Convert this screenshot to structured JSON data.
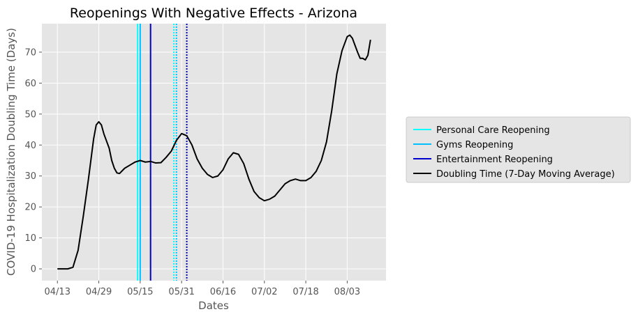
{
  "chart_data": {
    "type": "line",
    "title": "Reopenings With Negative Effects - Arizona",
    "xlabel": "Dates",
    "ylabel": "COVID-19 Hospitalization Doubling Time (Days)",
    "xlim": [
      "04/07",
      "08/18"
    ],
    "xticks": [
      "04/13",
      "04/29",
      "05/15",
      "05/31",
      "06/16",
      "07/02",
      "07/18",
      "08/03"
    ],
    "ylim": [
      -3.8,
      79.2
    ],
    "yticks": [
      0,
      10,
      20,
      30,
      40,
      50,
      60,
      70
    ],
    "grid": true,
    "legend": "right",
    "reopenings": [
      {
        "name": "Personal Care Reopening",
        "color": "#00ffff",
        "dates": [
          "05/14",
          "05/28"
        ],
        "linestyles": [
          "solid",
          "dotted"
        ]
      },
      {
        "name": "Gyms Reopening",
        "color": "#00bfff",
        "dates": [
          "05/15",
          "05/29"
        ],
        "linestyles": [
          "solid",
          "dotted"
        ]
      },
      {
        "name": "Entertainment Reopening",
        "color": "#0000cd",
        "dates": [
          "05/19",
          "06/02"
        ],
        "linestyles": [
          "solid",
          "dotted"
        ]
      }
    ],
    "series": [
      {
        "name": "Doubling Time (7-Day Moving Average)",
        "color": "#000000",
        "x": [
          "04/13",
          "04/15",
          "04/17",
          "04/19",
          "04/21",
          "04/23",
          "04/25",
          "04/27",
          "04/28",
          "04/29",
          "04/30",
          "05/01",
          "05/03",
          "05/04",
          "05/05",
          "05/06",
          "05/07",
          "05/09",
          "05/11",
          "05/13",
          "05/15",
          "05/17",
          "05/19",
          "05/21",
          "05/23",
          "05/25",
          "05/27",
          "05/29",
          "05/31",
          "06/02",
          "06/04",
          "06/06",
          "06/08",
          "06/10",
          "06/12",
          "06/14",
          "06/16",
          "06/18",
          "06/20",
          "06/22",
          "06/24",
          "06/26",
          "06/28",
          "06/30",
          "07/02",
          "07/04",
          "07/06",
          "07/08",
          "07/10",
          "07/12",
          "07/14",
          "07/16",
          "07/18",
          "07/20",
          "07/22",
          "07/24",
          "07/26",
          "07/28",
          "07/30",
          "08/01",
          "08/03",
          "08/04",
          "08/05",
          "08/07",
          "08/08",
          "08/09",
          "08/10",
          "08/11",
          "08/12"
        ],
        "values": [
          0,
          0,
          0,
          0.5,
          6,
          17,
          29,
          42,
          46.5,
          47.5,
          46.5,
          43.5,
          39,
          35,
          32.5,
          31,
          30.8,
          32.5,
          33.5,
          34.5,
          35,
          34.5,
          34.7,
          34.2,
          34.3,
          36,
          38,
          41.5,
          43.7,
          43,
          40,
          35.5,
          32.5,
          30.5,
          29.5,
          30,
          32,
          35.5,
          37.5,
          37,
          34,
          29,
          25,
          23,
          22,
          22.5,
          23.5,
          25.5,
          27.5,
          28.5,
          29,
          28.5,
          28.5,
          29.5,
          31.5,
          35,
          41,
          51,
          63,
          70.5,
          75,
          75.5,
          74.5,
          70,
          68,
          68,
          67.5,
          69,
          74
        ]
      }
    ]
  }
}
